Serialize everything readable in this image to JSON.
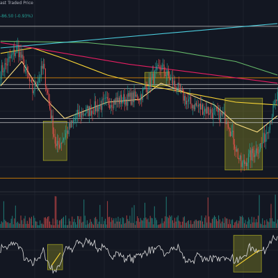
{
  "header": {
    "title_fragment": "ast Traded Price",
    "change_fragment": "-86.50 (-0.93%)"
  },
  "colors": {
    "background": "#131722",
    "grid": "#262a35",
    "up": "#26a69a",
    "down": "#ef5350",
    "ma_fast": "#ffe082",
    "ma_mid": "#fdd835",
    "ma_slow_red": "#e91e63",
    "ma_green": "#66bb6a",
    "trend_cyan": "#4dd0e1",
    "level_lines": "#c9c9c9",
    "level_orange": "#ff9800",
    "pattern_box": "#9e9d24",
    "rsi_line": "#e0e0e0",
    "rsi_trend": "#fdd835"
  },
  "chart_data": [
    {
      "type": "line",
      "panel": "price",
      "grid": true,
      "x_count": 260,
      "candles": [
        {
          "start": 0,
          "end": 16,
          "close_start": 74,
          "close_end": 92
        },
        {
          "start": 16,
          "end": 30,
          "close_start": 92,
          "close_end": 60
        },
        {
          "start": 30,
          "end": 40,
          "close_start": 60,
          "close_end": 78
        },
        {
          "start": 40,
          "end": 52,
          "close_start": 78,
          "close_end": 18
        },
        {
          "start": 52,
          "end": 72,
          "close_start": 18,
          "close_end": 42
        },
        {
          "start": 72,
          "end": 100,
          "close_start": 42,
          "close_end": 52
        },
        {
          "start": 100,
          "end": 130,
          "close_start": 52,
          "close_end": 56
        },
        {
          "start": 130,
          "end": 150,
          "close_start": 56,
          "close_end": 78
        },
        {
          "start": 150,
          "end": 175,
          "close_start": 78,
          "close_end": 52
        },
        {
          "start": 175,
          "end": 212,
          "close_start": 52,
          "close_end": 40
        },
        {
          "start": 212,
          "end": 225,
          "close_start": 40,
          "close_end": 5
        },
        {
          "start": 225,
          "end": 245,
          "close_start": 5,
          "close_end": 22
        },
        {
          "start": 245,
          "end": 259,
          "close_start": 22,
          "close_end": 56
        }
      ],
      "ma_series": [
        {
          "color_key": "ma_fast",
          "points": [
            [
              0,
              64
            ],
            [
              20,
              82
            ],
            [
              40,
              56
            ],
            [
              60,
              40
            ],
            [
              80,
              46
            ],
            [
              100,
              52
            ],
            [
              130,
              54
            ],
            [
              150,
              66
            ],
            [
              170,
              60
            ],
            [
              200,
              50
            ],
            [
              220,
              36
            ],
            [
              240,
              30
            ],
            [
              259,
              42
            ]
          ]
        },
        {
          "color_key": "ma_mid",
          "points": [
            [
              0,
              88
            ],
            [
              30,
              92
            ],
            [
              60,
              84
            ],
            [
              100,
              72
            ],
            [
              140,
              64
            ],
            [
              180,
              58
            ],
            [
              220,
              52
            ],
            [
              259,
              50
            ]
          ]
        },
        {
          "color_key": "ma_slow_red",
          "points": [
            [
              0,
              96
            ],
            [
              60,
              88
            ],
            [
              120,
              80
            ],
            [
              180,
              74
            ],
            [
              259,
              66
            ]
          ]
        },
        {
          "color_key": "ma_green",
          "points": [
            [
              0,
              97
            ],
            [
              80,
              96
            ],
            [
              160,
              90
            ],
            [
              220,
              82
            ],
            [
              259,
              72
            ]
          ]
        },
        {
          "color_key": "trend_cyan",
          "points": [
            [
              0,
              92
            ],
            [
              259,
              110
            ]
          ]
        }
      ],
      "levels": [
        {
          "y": 108,
          "color_key": "level_lines"
        },
        {
          "y": 70,
          "color_key": "level_orange"
        },
        {
          "y": 65,
          "color_key": "level_lines"
        },
        {
          "y": 62,
          "color_key": "level_lines"
        },
        {
          "y": 40,
          "color_key": "level_lines"
        },
        {
          "y": 37,
          "color_key": "level_lines"
        },
        {
          "y": -4,
          "color_key": "level_orange"
        }
      ],
      "pattern_boxes": [
        {
          "x0": 40,
          "x1": 62,
          "y0": 9,
          "y1": 38
        },
        {
          "x0": 135,
          "x1": 158,
          "y0": 64,
          "y1": 74
        },
        {
          "x0": 210,
          "x1": 245,
          "y0": 2,
          "y1": 55
        }
      ],
      "ylim": [
        -10,
        112
      ]
    },
    {
      "type": "bar",
      "panel": "volume",
      "x_count": 260,
      "ylim": [
        0,
        100
      ]
    },
    {
      "type": "line",
      "panel": "rsi",
      "x_count": 260,
      "ylim": [
        0,
        100
      ],
      "rsi_trend": [
        [
          48,
          25
        ],
        [
          56,
          52
        ],
        [
          220,
          22
        ],
        [
          242,
          58
        ]
      ],
      "pattern_boxes": [
        {
          "x0": 44,
          "x1": 58,
          "y0": 15,
          "y1": 70
        },
        {
          "x0": 218,
          "x1": 244,
          "y0": 10,
          "y1": 90
        }
      ]
    }
  ]
}
